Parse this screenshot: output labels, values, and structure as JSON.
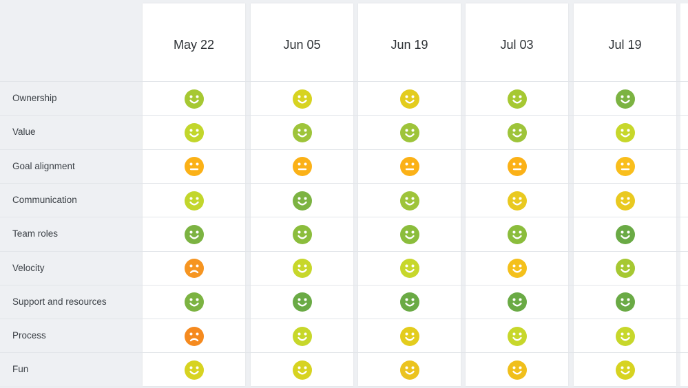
{
  "columns": [
    "May 22",
    "Jun 05",
    "Jun 19",
    "Jul 03",
    "Jul 19"
  ],
  "rows": [
    {
      "label": "Ownership",
      "moods": [
        "happy",
        "happy",
        "happy",
        "happy",
        "happy"
      ],
      "colors": [
        "#a6c832",
        "#d7d321",
        "#e3cc1d",
        "#a6c832",
        "#7cb342"
      ]
    },
    {
      "label": "Value",
      "moods": [
        "happy",
        "happy",
        "happy",
        "happy",
        "happy"
      ],
      "colors": [
        "#c2d62c",
        "#9ec43a",
        "#9ec43a",
        "#9ec43a",
        "#c7d72b"
      ]
    },
    {
      "label": "Goal alignment",
      "moods": [
        "neutral",
        "neutral",
        "neutral",
        "neutral",
        "neutral"
      ],
      "colors": [
        "#fbb117",
        "#fbb117",
        "#fbb117",
        "#fbb117",
        "#f9be1c"
      ]
    },
    {
      "label": "Communication",
      "moods": [
        "happy",
        "happy",
        "happy",
        "happy",
        "happy"
      ],
      "colors": [
        "#c2d62c",
        "#7cb342",
        "#9ec43a",
        "#e9c920",
        "#e9c920"
      ]
    },
    {
      "label": "Team roles",
      "moods": [
        "happy",
        "happy",
        "happy",
        "happy",
        "happy"
      ],
      "colors": [
        "#7cb342",
        "#8bbd3c",
        "#8bbd3c",
        "#8bbd3c",
        "#6aaa45"
      ]
    },
    {
      "label": "Velocity",
      "moods": [
        "sad",
        "happy",
        "happy",
        "happy",
        "happy"
      ],
      "colors": [
        "#f69521",
        "#c7d72b",
        "#c7d72b",
        "#f4c01b",
        "#a6c832"
      ]
    },
    {
      "label": "Support and resources",
      "moods": [
        "happy",
        "happy",
        "happy",
        "happy",
        "happy"
      ],
      "colors": [
        "#7cb342",
        "#6aaa45",
        "#6aaa45",
        "#6aaa45",
        "#6aaa45"
      ]
    },
    {
      "label": "Process",
      "moods": [
        "sad",
        "happy",
        "happy",
        "happy",
        "happy"
      ],
      "colors": [
        "#f58a1f",
        "#c7d72b",
        "#e3cc1d",
        "#c7d72b",
        "#c7d72b"
      ]
    },
    {
      "label": "Fun",
      "moods": [
        "happy",
        "happy",
        "happy",
        "happy",
        "happy"
      ],
      "colors": [
        "#d7d321",
        "#d7d321",
        "#ebc31f",
        "#f0bf1c",
        "#d7d321"
      ]
    }
  ]
}
